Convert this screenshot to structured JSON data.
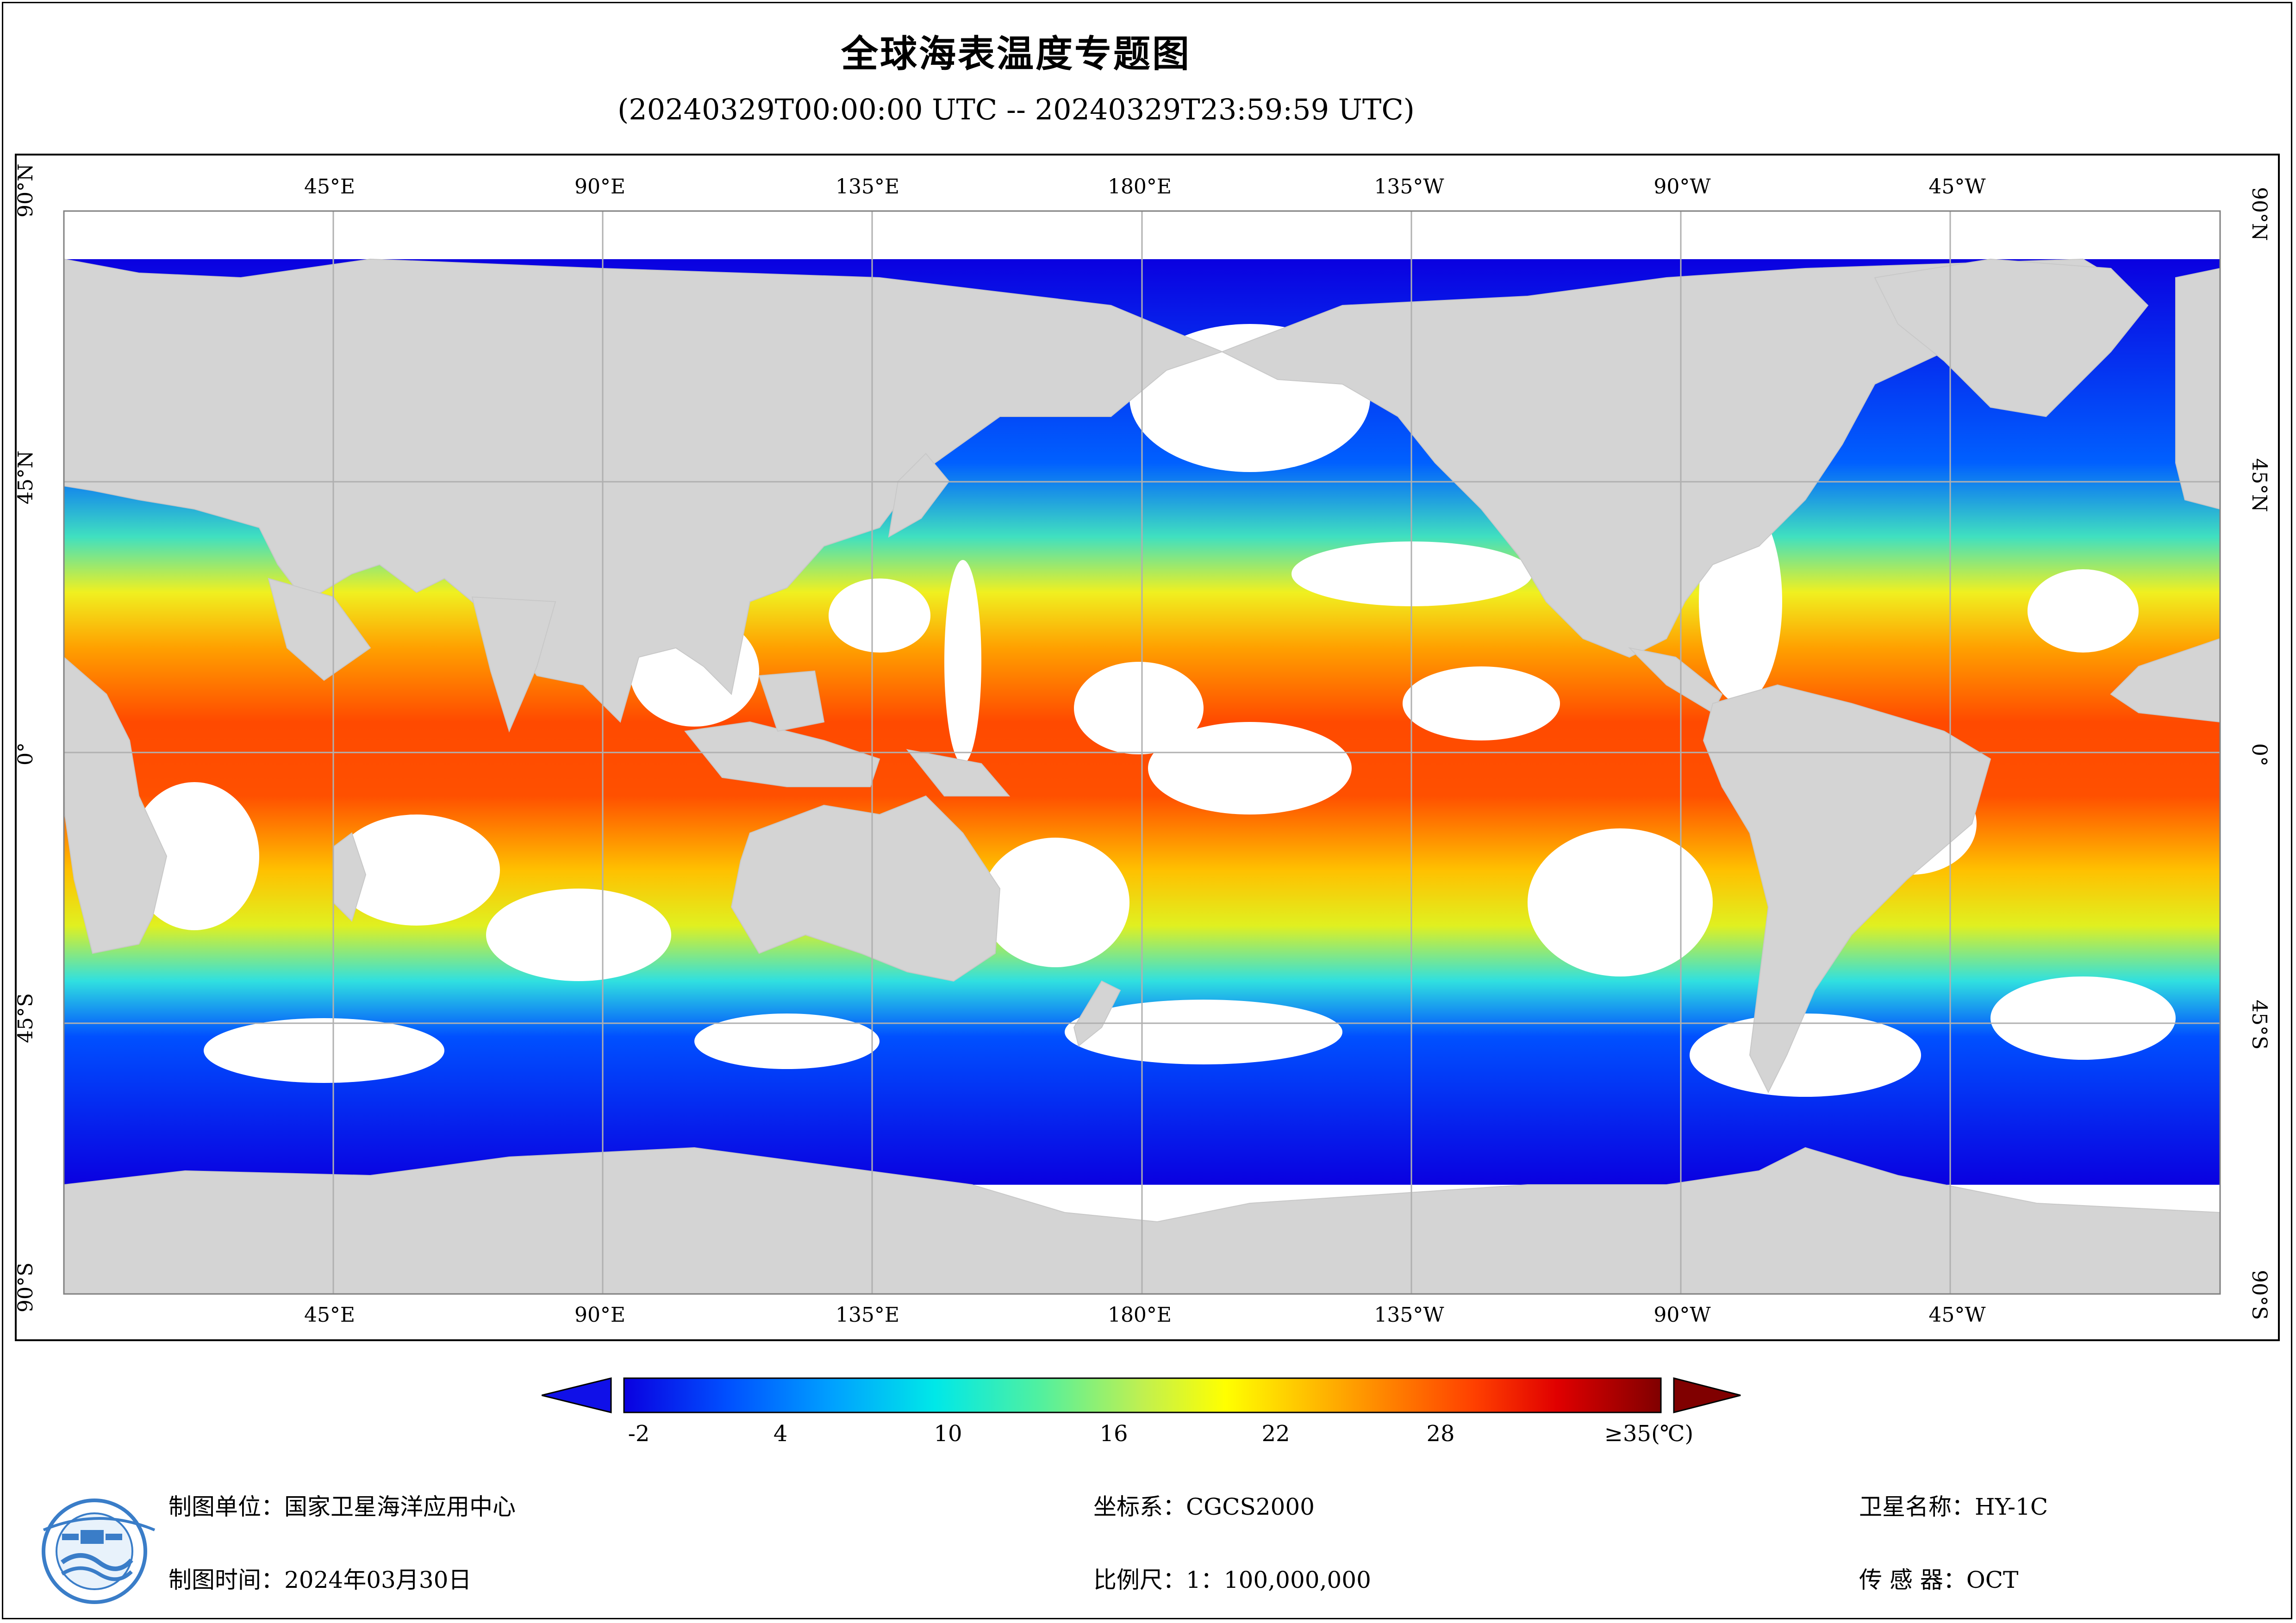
{
  "title": "全球海表温度专题图",
  "subtitle": "(20240329T00:00:00 UTC -- 20240329T23:59:59 UTC)",
  "map": {
    "projection": "equirectangular, centered 180°",
    "lon_ticks_top": [
      "45°E",
      "90°E",
      "135°E",
      "180°E",
      "135°W",
      "90°W",
      "45°W"
    ],
    "lon_ticks_bottom": [
      "45°E",
      "90°E",
      "135°E",
      "180°E",
      "135°W",
      "90°W",
      "45°W"
    ],
    "lat_ticks_left": [
      "90°N",
      "45°N",
      "0°",
      "45°S",
      "90°S"
    ],
    "lat_ticks_right": [
      "90°N",
      "45°N",
      "0°",
      "45°S",
      "90°S"
    ],
    "colors": {
      "land": "#d4d4d4",
      "no_data": "#ffffff",
      "grid": "#b0b0b0"
    }
  },
  "colorbar": {
    "labels": [
      "-2",
      "4",
      "10",
      "16",
      "22",
      "28",
      "≥35(℃)"
    ],
    "min": -2,
    "max": 35,
    "colors": [
      "#0a00e0",
      "#0050ff",
      "#00a0ff",
      "#00e8e8",
      "#50f0a0",
      "#c0f050",
      "#ffff00",
      "#ffc000",
      "#ff8000",
      "#ff4000",
      "#e00000",
      "#800000"
    ]
  },
  "footer": {
    "unit_label": "制图单位：国家卫星海洋应用中心",
    "time_label": "制图时间：2024年03月30日",
    "crs_label": "坐标系：CGCS2000",
    "scale_label": "比例尺：1：100,000,000",
    "satellite_label": "卫星名称：HY-1C",
    "sensor_label": "传 感 器：OCT"
  }
}
